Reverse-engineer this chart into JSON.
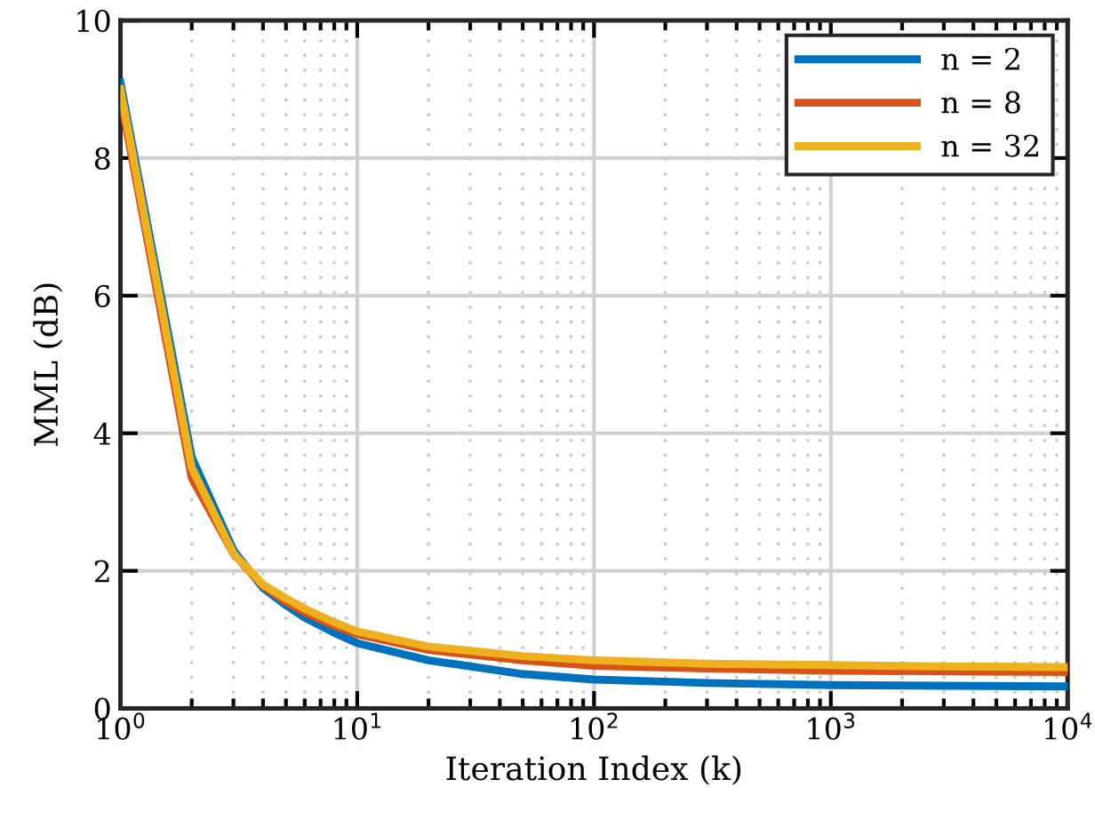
{
  "chart_data": {
    "type": "line",
    "xlabel": "Iteration Index (k)",
    "ylabel": "MML (dB)",
    "x": [
      1,
      2,
      3,
      4,
      5,
      6,
      8,
      10,
      20,
      50,
      100,
      300,
      1000,
      3000,
      10000
    ],
    "series": [
      {
        "name": "n = 2",
        "color": "#0072bd",
        "values": [
          9.1,
          3.65,
          2.3,
          1.75,
          1.5,
          1.32,
          1.1,
          0.95,
          0.7,
          0.5,
          0.42,
          0.37,
          0.34,
          0.33,
          0.32
        ]
      },
      {
        "name": "n = 8",
        "color": "#d95319",
        "values": [
          8.9,
          3.35,
          2.25,
          1.78,
          1.55,
          1.4,
          1.2,
          1.08,
          0.85,
          0.7,
          0.62,
          0.58,
          0.55,
          0.54,
          0.53
        ]
      },
      {
        "name": "n = 32",
        "color": "#edb120",
        "values": [
          9.0,
          3.5,
          2.25,
          1.8,
          1.6,
          1.45,
          1.25,
          1.12,
          0.9,
          0.76,
          0.7,
          0.65,
          0.63,
          0.61,
          0.6
        ]
      }
    ],
    "log": "x",
    "xlim": [
      1,
      10000
    ],
    "ylim": [
      0,
      10
    ],
    "xticks": [
      {
        "value": 1,
        "label": "10$^{0}$"
      },
      {
        "value": 10,
        "label": "10$^{1}$"
      },
      {
        "value": 100,
        "label": "10$^{2}$"
      },
      {
        "value": 1000,
        "label": "10$^{3}$"
      },
      {
        "value": 10000,
        "label": "10$^{4}$"
      }
    ],
    "yticks": [
      0,
      2,
      4,
      6,
      8,
      10
    ],
    "grid": true,
    "legend": "top right",
    "line_style": "solid",
    "marker": "none"
  }
}
